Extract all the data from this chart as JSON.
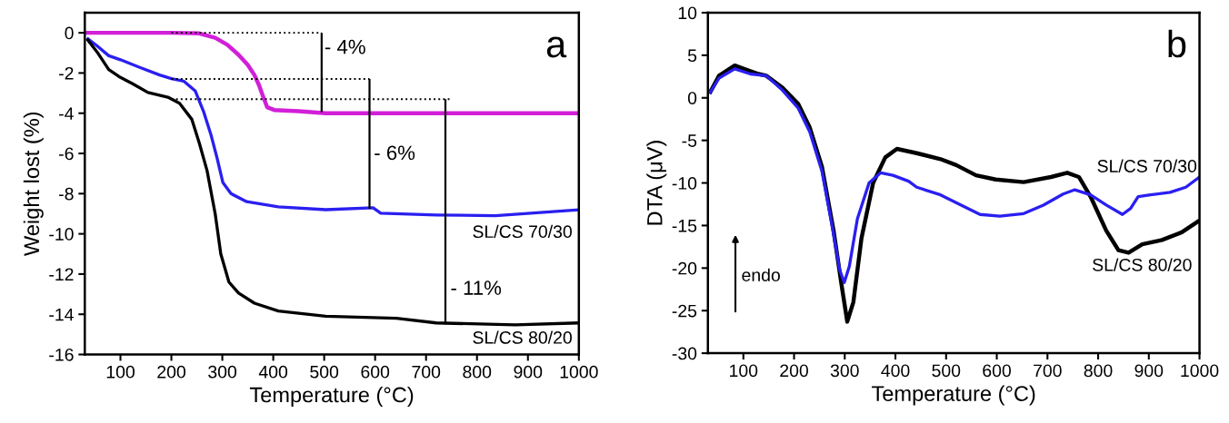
{
  "chart_data": [
    {
      "type": "line",
      "xlabel": "Temperature (°C)",
      "ylabel": "Weight lost (%)",
      "xlim": [
        30,
        1000
      ],
      "ylim": [
        -16,
        1
      ],
      "xticks": [
        100,
        200,
        300,
        400,
        500,
        600,
        700,
        800,
        900,
        1000
      ],
      "yticks": [
        -16,
        -14,
        -12,
        -10,
        -8,
        -6,
        -4,
        -2,
        0
      ],
      "grid": false,
      "legend": false,
      "series": [
        {
          "color": "#d21fd8",
          "x": [
            30,
            200,
            255,
            286,
            310,
            332,
            350,
            363,
            372,
            379,
            388,
            402,
            450,
            503,
            1000
          ],
          "values": [
            0,
            0,
            -0.03,
            -0.25,
            -0.6,
            -1.1,
            -1.6,
            -2.1,
            -2.6,
            -3.1,
            -3.7,
            -3.84,
            -3.9,
            -4.0,
            -4.0
          ]
        },
        {
          "name": "SL/CS 70/30",
          "color": "#2a1ff0",
          "x": [
            34,
            54,
            77,
            100,
            139,
            177,
            200,
            224,
            247,
            263,
            278,
            290,
            301,
            317,
            348,
            410,
            503,
            596,
            611,
            720,
            836,
            1000
          ],
          "values": [
            -0.26,
            -0.65,
            -1.14,
            -1.34,
            -1.73,
            -2.1,
            -2.28,
            -2.4,
            -2.9,
            -3.9,
            -5.1,
            -6.26,
            -7.44,
            -8.0,
            -8.4,
            -8.66,
            -8.8,
            -8.7,
            -8.97,
            -9.06,
            -9.1,
            -8.8
          ]
        },
        {
          "name": "SL/CS 80/20",
          "color": "#000000",
          "x": [
            34,
            54,
            77,
            100,
            123,
            154,
            193,
            216,
            240,
            255,
            270,
            286,
            297,
            313,
            332,
            363,
            410,
            503,
            642,
            720,
            875,
            1000
          ],
          "values": [
            -0.3,
            -0.95,
            -1.83,
            -2.22,
            -2.52,
            -2.97,
            -3.2,
            -3.5,
            -4.3,
            -5.5,
            -6.85,
            -9.0,
            -11.0,
            -12.4,
            -12.95,
            -13.45,
            -13.84,
            -14.1,
            -14.2,
            -14.43,
            -14.53,
            -14.43
          ]
        },
        {
          "color": "#000000",
          "line_style": "dotted",
          "x": [
            200,
            495
          ],
          "values": [
            0,
            0
          ]
        },
        {
          "color": "#000000",
          "line_style": "dotted",
          "x": [
            200,
            589
          ],
          "values": [
            -2.3,
            -2.3
          ]
        },
        {
          "color": "#000000",
          "line_style": "dotted",
          "x": [
            200,
            750
          ],
          "values": [
            -3.3,
            -3.3
          ]
        },
        {
          "color": "#000000",
          "x": [
            495,
            495
          ],
          "values": [
            0,
            -3.95
          ]
        },
        {
          "color": "#000000",
          "x": [
            589,
            589
          ],
          "values": [
            -2.3,
            -8.75
          ]
        },
        {
          "color": "#000000",
          "x": [
            738,
            738
          ],
          "values": [
            -3.3,
            -14.5
          ]
        }
      ],
      "annotations": [
        "a",
        "- 4%",
        "- 6%",
        "- 11%"
      ]
    },
    {
      "type": "line",
      "xlabel": "Temperature (°C)",
      "ylabel": "DTA (μV)",
      "xlim": [
        30,
        1000
      ],
      "ylim": [
        -30,
        10
      ],
      "xticks": [
        100,
        200,
        300,
        400,
        500,
        600,
        700,
        800,
        900,
        1000
      ],
      "yticks": [
        -30,
        -25,
        -20,
        -15,
        -10,
        -5,
        0,
        5,
        10
      ],
      "grid": false,
      "legend": false,
      "series": [
        {
          "name": "SL/CS 80/20",
          "color": "#000000",
          "x": [
            33,
            52,
            83,
            106,
            130,
            145,
            177,
            208,
            231,
            255,
            278,
            294,
            305,
            317,
            333,
            356,
            380,
            403,
            442,
            489,
            520,
            559,
            598,
            653,
            707,
            739,
            762,
            785,
            816,
            840,
            860,
            887,
            926,
            965,
            1000
          ],
          "values": [
            0.5,
            2.6,
            3.8,
            3.3,
            2.8,
            2.6,
            1.2,
            -0.7,
            -3.5,
            -8.1,
            -15.6,
            -22.1,
            -26.3,
            -24,
            -16.5,
            -10,
            -7.0,
            -6.0,
            -6.5,
            -7.2,
            -7.9,
            -9.1,
            -9.6,
            -9.9,
            -9.3,
            -8.8,
            -9.3,
            -11.6,
            -15.6,
            -17.9,
            -18.2,
            -17.2,
            -16.7,
            -15.8,
            -14.4
          ]
        },
        {
          "name": "SL/CS 70/30",
          "color": "#2a1ff0",
          "x": [
            33,
            52,
            83,
            114,
            145,
            177,
            208,
            231,
            255,
            274,
            290,
            299,
            309,
            325,
            348,
            371,
            395,
            426,
            442,
            489,
            536,
            567,
            606,
            653,
            692,
            731,
            754,
            785,
            816,
            848,
            864,
            879,
            903,
            942,
            973,
            1000
          ],
          "values": [
            0.5,
            2.3,
            3.4,
            2.8,
            2.6,
            0.9,
            -1.2,
            -4.0,
            -8.6,
            -14.7,
            -20.2,
            -21.7,
            -19.8,
            -14.2,
            -10,
            -8.8,
            -9.1,
            -9.8,
            -10.5,
            -11.4,
            -12.8,
            -13.7,
            -13.9,
            -13.6,
            -12.6,
            -11.3,
            -10.8,
            -11.4,
            -12.6,
            -13.7,
            -13.0,
            -11.6,
            -11.4,
            -11.1,
            -10.5,
            -9.3
          ]
        }
      ],
      "annotations": [
        "b",
        "endo"
      ]
    }
  ]
}
